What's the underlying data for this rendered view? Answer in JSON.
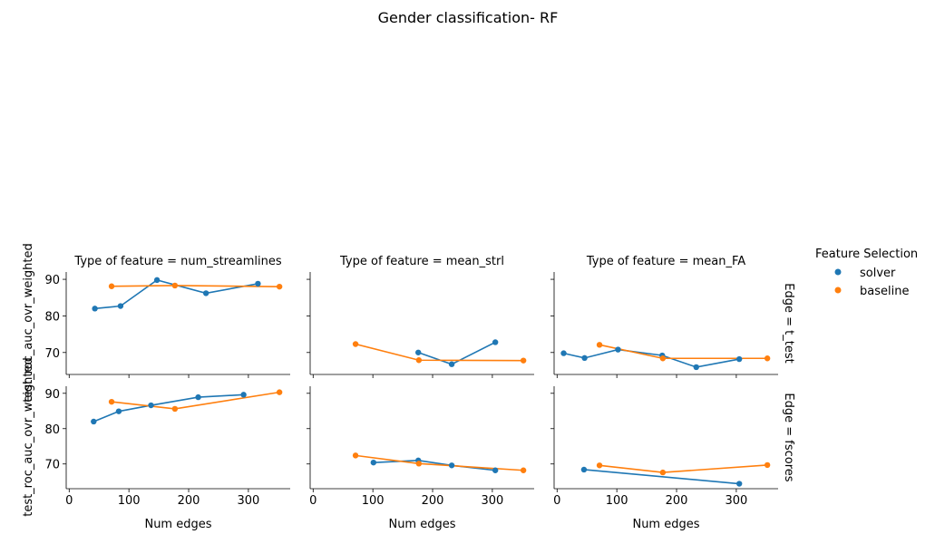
{
  "title": "Gender classification- RF",
  "colors": {
    "solver": "#1f77b4",
    "baseline": "#ff7f0e",
    "axis": "#000000"
  },
  "legend": {
    "title": "Feature Selection",
    "placement": "right",
    "entries": [
      "solver",
      "baseline"
    ]
  },
  "chart_data": {
    "type": "line",
    "facet_layout": "2 rows x 3 columns, shared axes",
    "xlabel": "Num edges",
    "ylabel": "test_roc_auc_ovr_weighted",
    "xlim": [
      -5,
      370
    ],
    "ylim_row1": [
      64,
      92
    ],
    "ylim_row2": [
      63,
      92
    ],
    "xticks": [
      0,
      100,
      200,
      300
    ],
    "yticks": [
      70,
      80,
      90
    ],
    "col_titles": [
      "Type of feature = num_streamlines",
      "Type of feature = mean_strl",
      "Type of feature = mean_FA"
    ],
    "row_titles": [
      "Edge = t_test",
      "Edge = fscores"
    ],
    "panels": [
      {
        "row": 0,
        "col": 0,
        "series": [
          {
            "name": "solver",
            "x": [
              43,
              86,
              147,
              229,
              316
            ],
            "y": [
              82,
              82.7,
              89.8,
              86.2,
              88.8
            ]
          },
          {
            "name": "baseline",
            "x": [
              71,
              177,
              352
            ],
            "y": [
              88.1,
              88.3,
              88
            ]
          }
        ]
      },
      {
        "row": 0,
        "col": 1,
        "series": [
          {
            "name": "solver",
            "x": [
              176,
              232,
              305
            ],
            "y": [
              70,
              66.8,
              72.8
            ]
          },
          {
            "name": "baseline",
            "x": [
              71,
              177,
              352
            ],
            "y": [
              72.3,
              67.9,
              67.8
            ]
          }
        ]
      },
      {
        "row": 0,
        "col": 2,
        "series": [
          {
            "name": "solver",
            "x": [
              11,
              46,
              102,
              176,
              233,
              305
            ],
            "y": [
              69.8,
              68.5,
              70.8,
              69.2,
              66,
              68.2
            ]
          },
          {
            "name": "baseline",
            "x": [
              71,
              177,
              352
            ],
            "y": [
              72.1,
              68.4,
              68.4
            ]
          }
        ]
      },
      {
        "row": 1,
        "col": 0,
        "series": [
          {
            "name": "solver",
            "x": [
              41,
              83,
              137,
              216,
              292
            ],
            "y": [
              82,
              84.9,
              86.6,
              88.9,
              89.6
            ]
          },
          {
            "name": "baseline",
            "x": [
              71,
              177,
              352
            ],
            "y": [
              87.6,
              85.6,
              90.3
            ]
          }
        ]
      },
      {
        "row": 1,
        "col": 1,
        "series": [
          {
            "name": "solver",
            "x": [
              101,
              176,
              232,
              305
            ],
            "y": [
              70.4,
              71,
              69.6,
              68.2
            ]
          },
          {
            "name": "baseline",
            "x": [
              71,
              177,
              352
            ],
            "y": [
              72.4,
              70.1,
              68.2
            ]
          }
        ]
      },
      {
        "row": 1,
        "col": 2,
        "series": [
          {
            "name": "solver",
            "x": [
              45,
              305
            ],
            "y": [
              68.4,
              64.4
            ]
          },
          {
            "name": "baseline",
            "x": [
              71,
              177,
              352
            ],
            "y": [
              69.6,
              67.6,
              69.7
            ]
          }
        ]
      }
    ]
  }
}
